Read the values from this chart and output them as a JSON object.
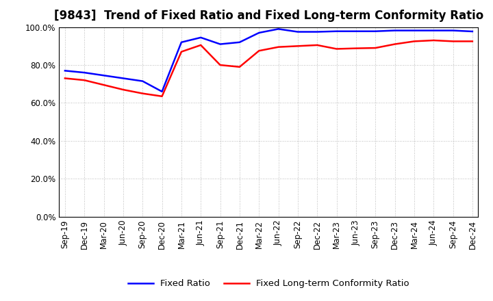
{
  "title": "[9843]  Trend of Fixed Ratio and Fixed Long-term Conformity Ratio",
  "x_labels": [
    "Sep-19",
    "Dec-19",
    "Mar-20",
    "Jun-20",
    "Sep-20",
    "Dec-20",
    "Mar-21",
    "Jun-21",
    "Sep-21",
    "Dec-21",
    "Mar-22",
    "Jun-22",
    "Sep-22",
    "Dec-22",
    "Mar-23",
    "Jun-23",
    "Sep-23",
    "Dec-23",
    "Mar-24",
    "Jun-24",
    "Sep-24",
    "Dec-24"
  ],
  "fixed_ratio": [
    0.77,
    0.76,
    0.745,
    0.73,
    0.715,
    0.66,
    0.92,
    0.945,
    0.91,
    0.92,
    0.97,
    0.99,
    0.975,
    0.975,
    0.978,
    0.978,
    0.978,
    0.982,
    0.982,
    0.982,
    0.982,
    0.977
  ],
  "fixed_lt_ratio": [
    0.73,
    0.72,
    0.695,
    0.67,
    0.65,
    0.635,
    0.87,
    0.905,
    0.8,
    0.79,
    0.875,
    0.895,
    0.9,
    0.905,
    0.885,
    0.888,
    0.89,
    0.91,
    0.925,
    0.93,
    0.925,
    0.925
  ],
  "fixed_ratio_color": "#0000FF",
  "fixed_lt_ratio_color": "#FF0000",
  "ylim": [
    0.0,
    1.0
  ],
  "yticks": [
    0.0,
    0.2,
    0.4,
    0.6,
    0.8,
    1.0
  ],
  "background_color": "#FFFFFF",
  "plot_bg_color": "#FFFFFF",
  "grid_color": "#999999",
  "legend_fixed_ratio": "Fixed Ratio",
  "legend_fixed_lt_ratio": "Fixed Long-term Conformity Ratio",
  "title_fontsize": 12,
  "axis_fontsize": 8.5,
  "legend_fontsize": 9.5
}
